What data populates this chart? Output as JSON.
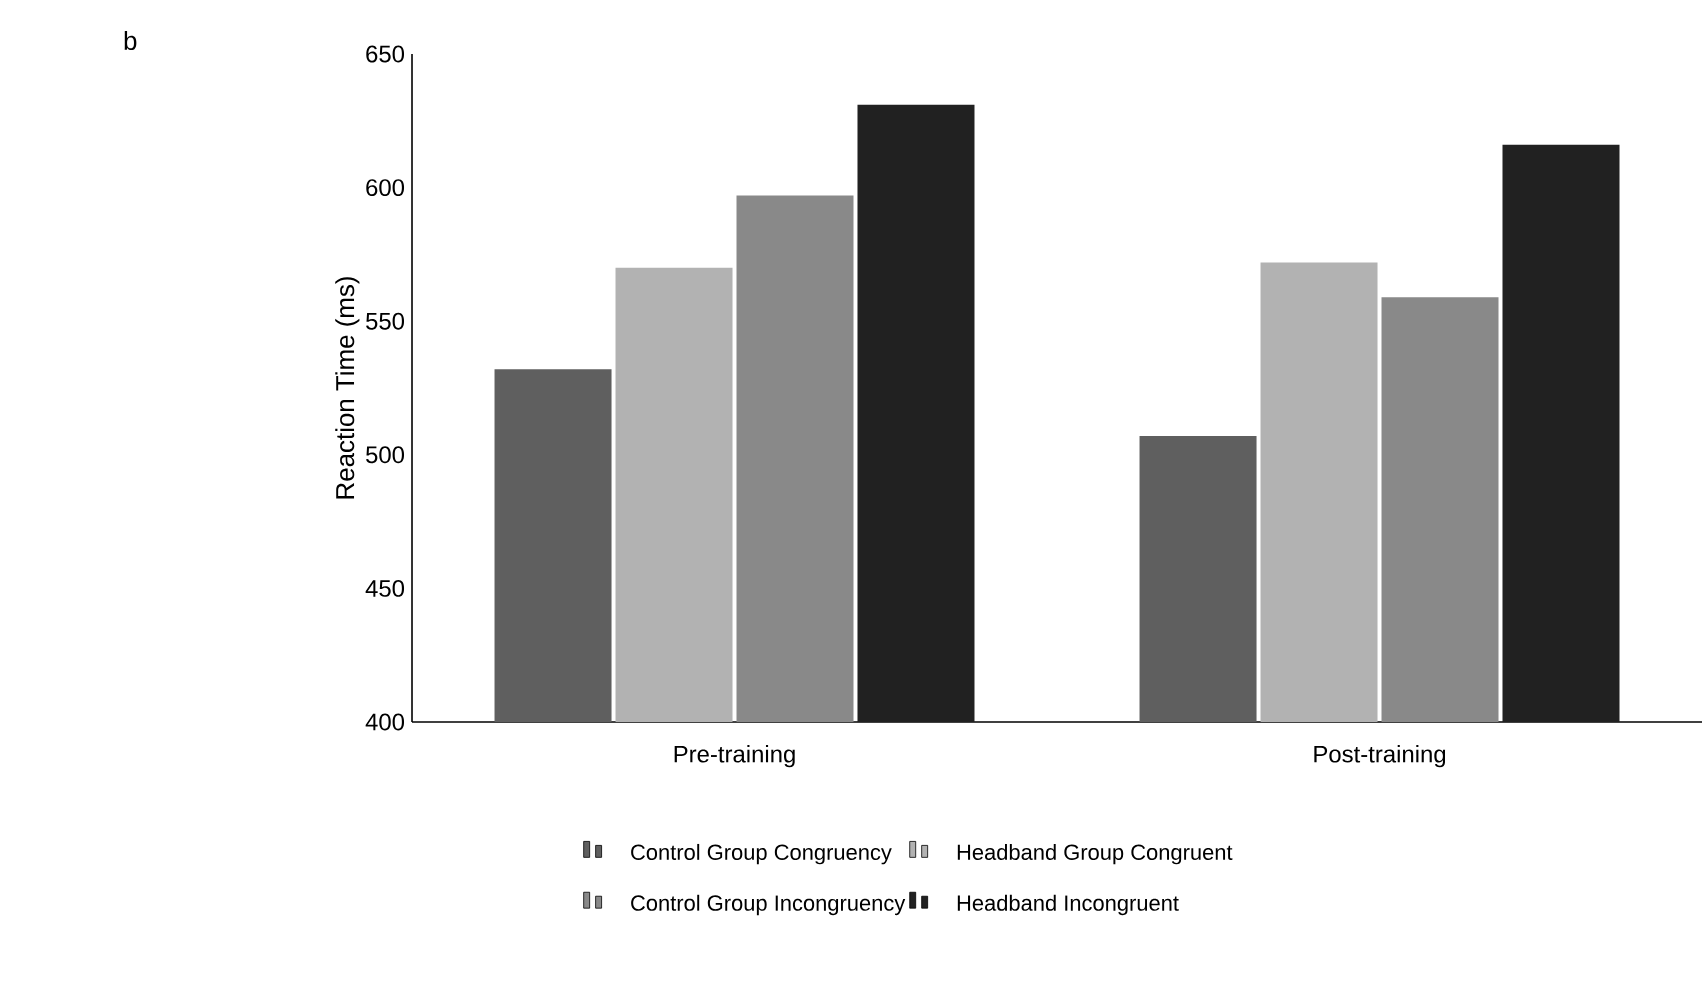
{
  "chart_data": {
    "type": "bar",
    "ylabel": "Reaction Time (ms)",
    "categories": [
      "Pre-training",
      "Post-training"
    ],
    "series": [
      {
        "name": "Control Group Congruency",
        "color": "#5f5f5f",
        "values": [
          532,
          507
        ]
      },
      {
        "name": "Headband Group Congruent",
        "color": "#b2b2b2",
        "values": [
          570,
          572
        ]
      },
      {
        "name": "Control Group Incongruency",
        "color": "#898989",
        "values": [
          597,
          559
        ]
      },
      {
        "name": "Headband Incongruent",
        "color": "#212121",
        "values": [
          631,
          616
        ]
      }
    ],
    "ylim": [
      400,
      650
    ],
    "yticks": [
      400,
      450,
      500,
      550,
      600,
      650
    ],
    "legend": "bottom",
    "annotations": [
      "b"
    ]
  }
}
